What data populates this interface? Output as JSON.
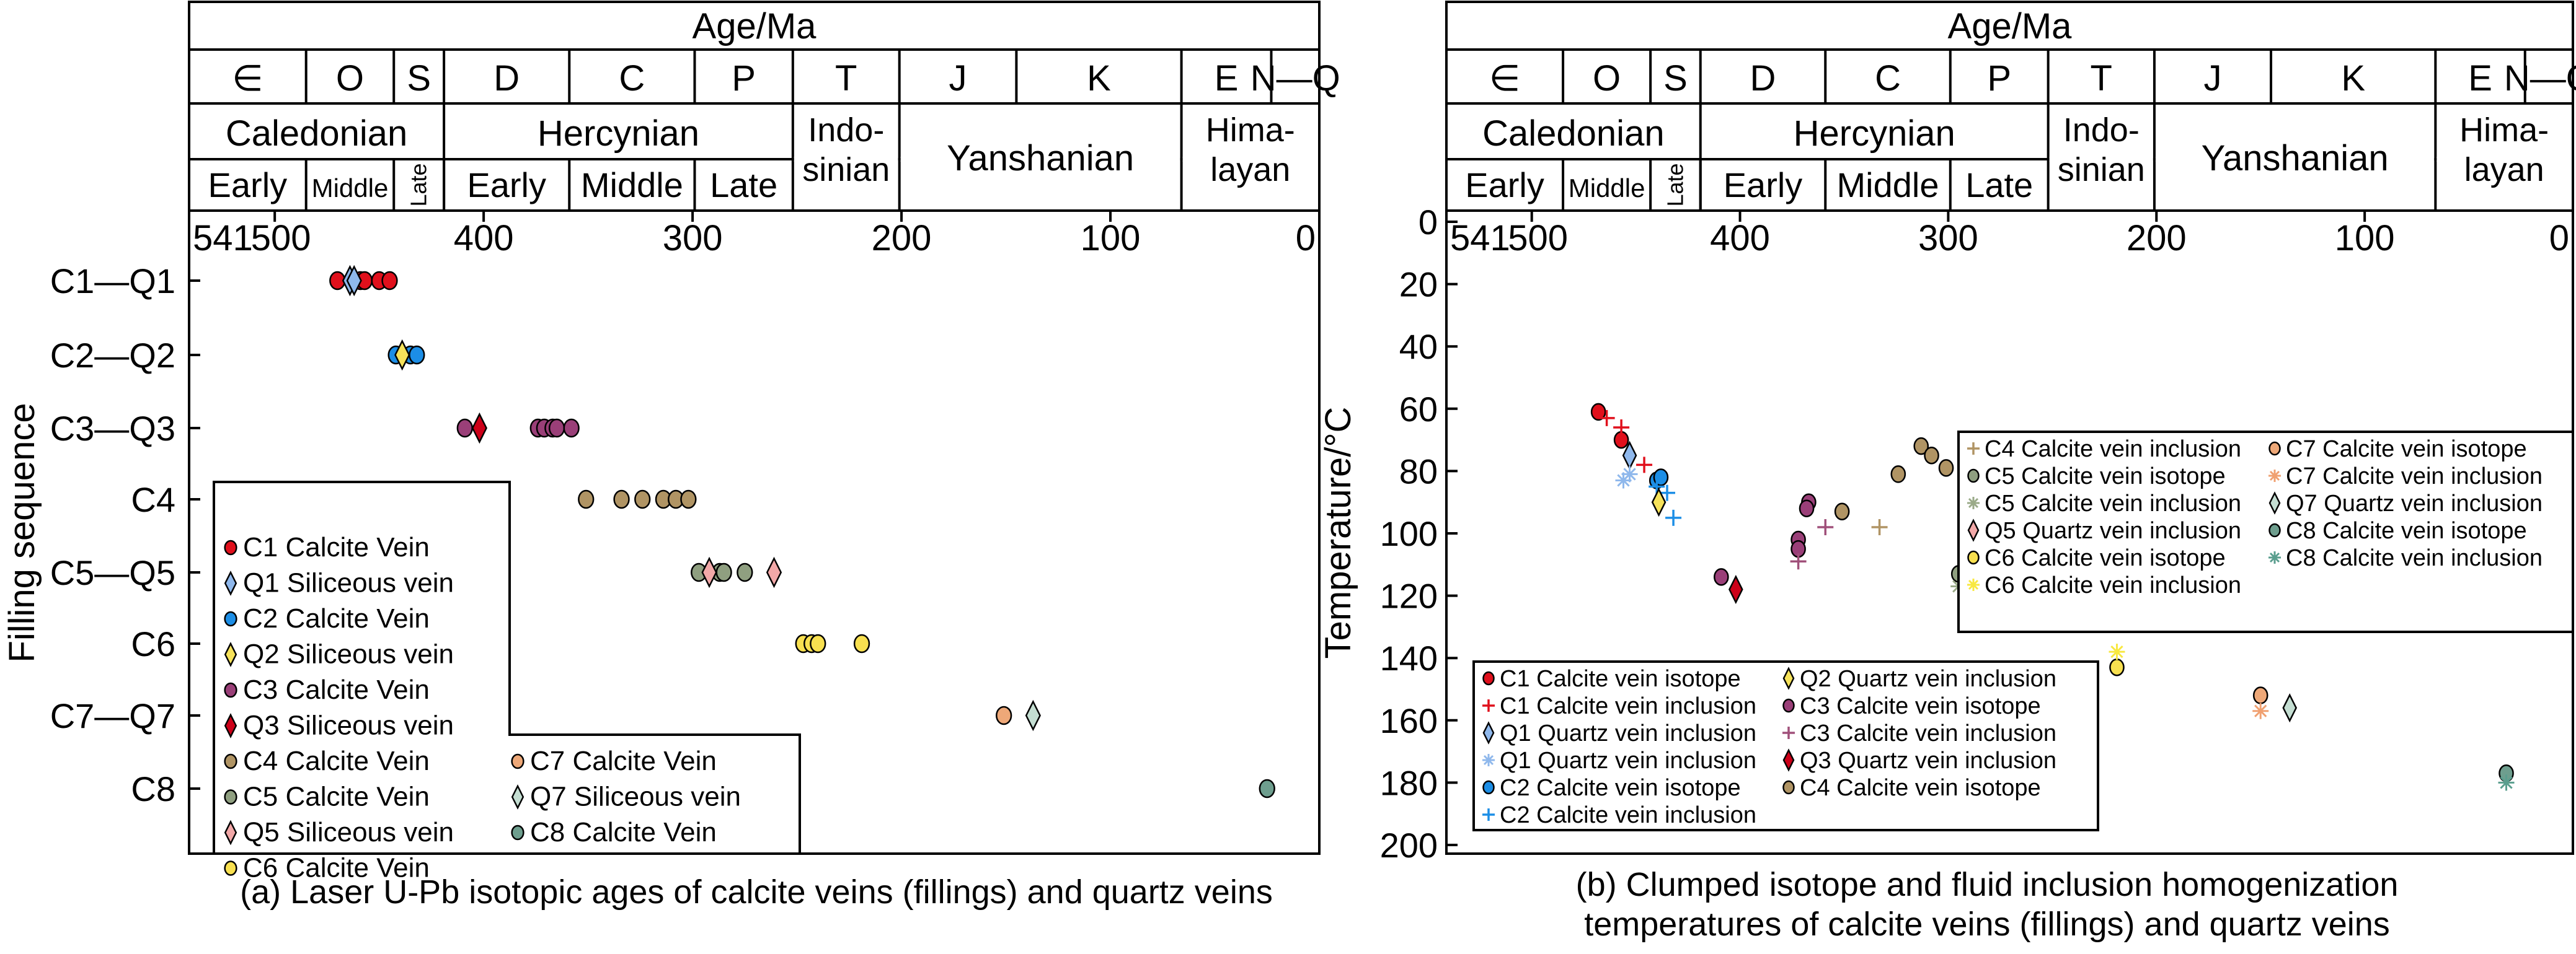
{
  "header": {
    "title": "Age/Ma",
    "periods": [
      {
        "label": "∈",
        "from": 541,
        "to": 485
      },
      {
        "label": "O",
        "from": 485,
        "to": 443
      },
      {
        "label": "S",
        "from": 443,
        "to": 419
      },
      {
        "label": "D",
        "from": 419,
        "to": 359
      },
      {
        "label": "C",
        "from": 359,
        "to": 299
      },
      {
        "label": "P",
        "from": 299,
        "to": 252
      },
      {
        "label": "T",
        "from": 252,
        "to": 201
      },
      {
        "label": "J",
        "from": 201,
        "to": 145
      },
      {
        "label": "K",
        "from": 145,
        "to": 66
      },
      {
        "label": "E",
        "from": 66,
        "to": 23
      },
      {
        "label": "N—Q",
        "from": 23,
        "to": 0
      }
    ],
    "orogenies": [
      {
        "lines": [
          "Caledonian"
        ],
        "from": 541,
        "to": 419,
        "span": 1
      },
      {
        "lines": [
          "Hercynian"
        ],
        "from": 419,
        "to": 252,
        "span": 1
      },
      {
        "lines": [
          "Indo-",
          "sinian"
        ],
        "from": 252,
        "to": 201,
        "span": 2
      },
      {
        "lines": [
          "Yanshanian"
        ],
        "from": 201,
        "to": 66,
        "span": 2
      },
      {
        "lines": [
          "Hima-",
          "layan"
        ],
        "from": 66,
        "to": 0,
        "span": 2
      }
    ],
    "subdivisions": [
      {
        "label": "Early",
        "from": 541,
        "to": 485,
        "style": "normal"
      },
      {
        "label": "Middle",
        "from": 485,
        "to": 443,
        "style": "small"
      },
      {
        "label": "Late",
        "from": 443,
        "to": 419,
        "style": "rotated"
      },
      {
        "label": "Early",
        "from": 419,
        "to": 359,
        "style": "normal"
      },
      {
        "label": "Middle",
        "from": 359,
        "to": 299,
        "style": "normal"
      },
      {
        "label": "Late",
        "from": 299,
        "to": 252,
        "style": "normal"
      }
    ]
  },
  "chart_data": [
    {
      "type": "scatter",
      "caption": "(a) Laser U-Pb isotopic ages of calcite veins (fillings) and quartz veins",
      "xlabel": "Age/Ma",
      "ylabel": "Filling sequence",
      "xlim": [
        541,
        0
      ],
      "xticks": [
        "541",
        "500",
        "400",
        "300",
        "200",
        "100",
        "0"
      ],
      "xtick_values": [
        541,
        500,
        400,
        300,
        200,
        100,
        0
      ],
      "categories": [
        "C1—Q1",
        "C2—Q2",
        "C3—Q3",
        "C4",
        "C5—Q5",
        "C6",
        "C7—Q7",
        "C8"
      ],
      "series": [
        {
          "name": "C1 Calcite Vein",
          "marker": "circle",
          "color": "#e0101c",
          "row": 0,
          "ages": [
            470,
            459,
            457,
            450,
            445
          ]
        },
        {
          "name": "Q1 Siliceous vein",
          "marker": "diamond",
          "color": "#8fb8ec",
          "row": 0,
          "ages": [
            464,
            462
          ]
        },
        {
          "name": "C2 Calcite Vein",
          "marker": "circle",
          "color": "#1c8ee6",
          "row": 1,
          "ages": [
            442,
            435,
            432
          ]
        },
        {
          "name": "Q2 Siliceous vein",
          "marker": "diamond",
          "color": "#f6e25a",
          "row": 1,
          "ages": [
            439
          ]
        },
        {
          "name": "C3 Calcite Vein",
          "marker": "circle",
          "color": "#9a3f78",
          "row": 2,
          "ages": [
            409,
            374,
            371,
            367,
            365,
            358
          ]
        },
        {
          "name": "Q3 Siliceous vein",
          "marker": "diamond",
          "color": "#cc0018",
          "row": 2,
          "ages": [
            402
          ]
        },
        {
          "name": "C4 Calcite Vein",
          "marker": "circle",
          "color": "#b09464",
          "row": 3,
          "ages": [
            351,
            334,
            324,
            314,
            308,
            302
          ]
        },
        {
          "name": "C5 Calcite Vein",
          "marker": "circle",
          "color": "#8f9f80",
          "row": 4,
          "ages": [
            297,
            287,
            285,
            275
          ]
        },
        {
          "name": "Q5 Siliceous vein",
          "marker": "diamond",
          "color": "#f2a8a8",
          "row": 4,
          "ages": [
            292,
            261
          ]
        },
        {
          "name": "C6 Calcite Vein",
          "marker": "circle",
          "color": "#f8e050",
          "row": 5,
          "ages": [
            247,
            243,
            240,
            219
          ]
        },
        {
          "name": "C7 Calcite Vein",
          "marker": "circle",
          "color": "#eea878",
          "row": 6,
          "ages": [
            151
          ]
        },
        {
          "name": "Q7 Siliceous vein",
          "marker": "diamond",
          "color": "#c4ded2",
          "row": 6,
          "ages": [
            137
          ]
        },
        {
          "name": "C8 Calcite Vein",
          "marker": "circle",
          "color": "#6e9e8e",
          "row": 7,
          "ages": [
            25
          ]
        }
      ]
    },
    {
      "type": "scatter",
      "caption_lines": [
        "(b)  Clumped isotope and fluid inclusion homogenization",
        "temperatures of calcite veins (fillings) and quartz veins"
      ],
      "xlabel": "Age/Ma",
      "ylabel": "Temperature/°C",
      "xlim": [
        541,
        0
      ],
      "ylim": [
        0,
        200
      ],
      "xticks": [
        "541",
        "500",
        "400",
        "300",
        "200",
        "100",
        "0"
      ],
      "xtick_values": [
        541,
        500,
        400,
        300,
        200,
        100,
        0
      ],
      "yticks": [
        "0",
        "20",
        "40",
        "60",
        "80",
        "100",
        "120",
        "140",
        "160",
        "180",
        "200"
      ],
      "ytick_values": [
        0,
        20,
        40,
        60,
        80,
        100,
        120,
        140,
        160,
        180,
        200
      ],
      "series": [
        {
          "name": "C1 Calcite vein isotope",
          "marker": "circle",
          "color": "#e0101c",
          "points": [
            [
              468,
              61
            ],
            [
              457,
              70
            ]
          ]
        },
        {
          "name": "C1 Calcite vein inclusion",
          "marker": "plus",
          "color": "#e0101c",
          "points": [
            [
              464,
              63
            ],
            [
              457,
              66
            ],
            [
              446,
              78
            ]
          ]
        },
        {
          "name": "Q1 Quartz vein inclusion",
          "marker": "diamond",
          "color": "#8fb8ec",
          "points": [
            [
              453,
              75
            ]
          ]
        },
        {
          "name": "Q1 Quartz vein inclusion",
          "marker": "asterisk",
          "color": "#8fb8ec",
          "points": [
            [
              456,
              83
            ],
            [
              453,
              81
            ]
          ]
        },
        {
          "name": "C2 Calcite vein isotope",
          "marker": "circle",
          "color": "#1c8ee6",
          "points": [
            [
              440,
              83
            ],
            [
              438,
              82
            ]
          ]
        },
        {
          "name": "C2 Calcite vein inclusion",
          "marker": "plus",
          "color": "#1c8ee6",
          "points": [
            [
              440,
              85
            ],
            [
              435,
              87
            ],
            [
              432,
              95
            ]
          ]
        },
        {
          "name": "Q2 Quartz vein inclusion",
          "marker": "diamond",
          "color": "#f6e25a",
          "points": [
            [
              439,
              90
            ]
          ]
        },
        {
          "name": "C3 Calcite vein isotope",
          "marker": "circle",
          "color": "#9a3f78",
          "points": [
            [
              367,
              90
            ],
            [
              368,
              92
            ],
            [
              372,
              102
            ],
            [
              372,
              105
            ],
            [
              409,
              114
            ]
          ]
        },
        {
          "name": "C3 Calcite vein inclusion",
          "marker": "plus",
          "color": "#a0507a",
          "points": [
            [
              359,
              98
            ],
            [
              372,
              109
            ]
          ]
        },
        {
          "name": "Q3 Quartz vein inclusion",
          "marker": "diamond",
          "color": "#cc0018",
          "points": [
            [
              402,
              118
            ]
          ]
        },
        {
          "name": "C4 Calcite vein isotope",
          "marker": "circle",
          "color": "#b09464",
          "points": [
            [
              351,
              93
            ],
            [
              324,
              81
            ],
            [
              313,
              72
            ],
            [
              308,
              75
            ],
            [
              301,
              79
            ]
          ]
        },
        {
          "name": "C4 Calcite vein inclusion",
          "marker": "plus",
          "color": "#b09464",
          "points": [
            [
              333,
              98
            ]
          ]
        },
        {
          "name": "C5 Calcite vein isotope",
          "marker": "circle",
          "color": "#8f9f80",
          "points": [
            [
              295,
              113
            ],
            [
              286,
              111
            ],
            [
              275,
              108
            ]
          ]
        },
        {
          "name": "C5 Calcite vein inclusion",
          "marker": "asterisk",
          "color": "#9aaa88",
          "points": [
            [
              284,
              108
            ],
            [
              295,
              117
            ]
          ]
        },
        {
          "name": "Q5 Quartz vein inclusion",
          "marker": "diamond",
          "color": "#f2a8a8",
          "points": [
            [
              292,
              116
            ],
            [
              260,
              116
            ]
          ]
        },
        {
          "name": "C6 Calcite vein isotope",
          "marker": "circle",
          "color": "#f8e050",
          "points": [
            [
              244,
              123
            ],
            [
              241,
              125
            ],
            [
              219,
              143
            ]
          ]
        },
        {
          "name": "C6 Calcite vein inclusion",
          "marker": "asterisk",
          "color": "#f8e840",
          "points": [
            [
              246,
              120
            ],
            [
              219,
              138
            ]
          ]
        },
        {
          "name": "C7 Calcite vein isotope",
          "marker": "circle",
          "color": "#eea878",
          "points": [
            [
              150,
              152
            ]
          ]
        },
        {
          "name": "C7 Calcite vein inclusion",
          "marker": "asterisk",
          "color": "#f0a070",
          "points": [
            [
              150,
              157
            ]
          ]
        },
        {
          "name": "Q7 Quartz vein inclusion",
          "marker": "diamond",
          "color": "#c4ded2",
          "points": [
            [
              136,
              156
            ]
          ]
        },
        {
          "name": "C8 Calcite vein isotope",
          "marker": "circle",
          "color": "#6e9e8e",
          "points": [
            [
              32,
              177
            ]
          ]
        },
        {
          "name": "C8 Calcite vein inclusion",
          "marker": "asterisk",
          "color": "#5a9e8e",
          "points": [
            [
              32,
              180
            ]
          ]
        }
      ],
      "legend_bottom_left": [
        [
          0,
          1,
          2,
          3,
          4,
          5
        ],
        [
          6,
          7,
          8,
          9,
          10
        ]
      ],
      "legend_top_right": [
        [
          11,
          12,
          13,
          14,
          15,
          16
        ],
        [
          17,
          18,
          19,
          20,
          21
        ]
      ]
    }
  ]
}
